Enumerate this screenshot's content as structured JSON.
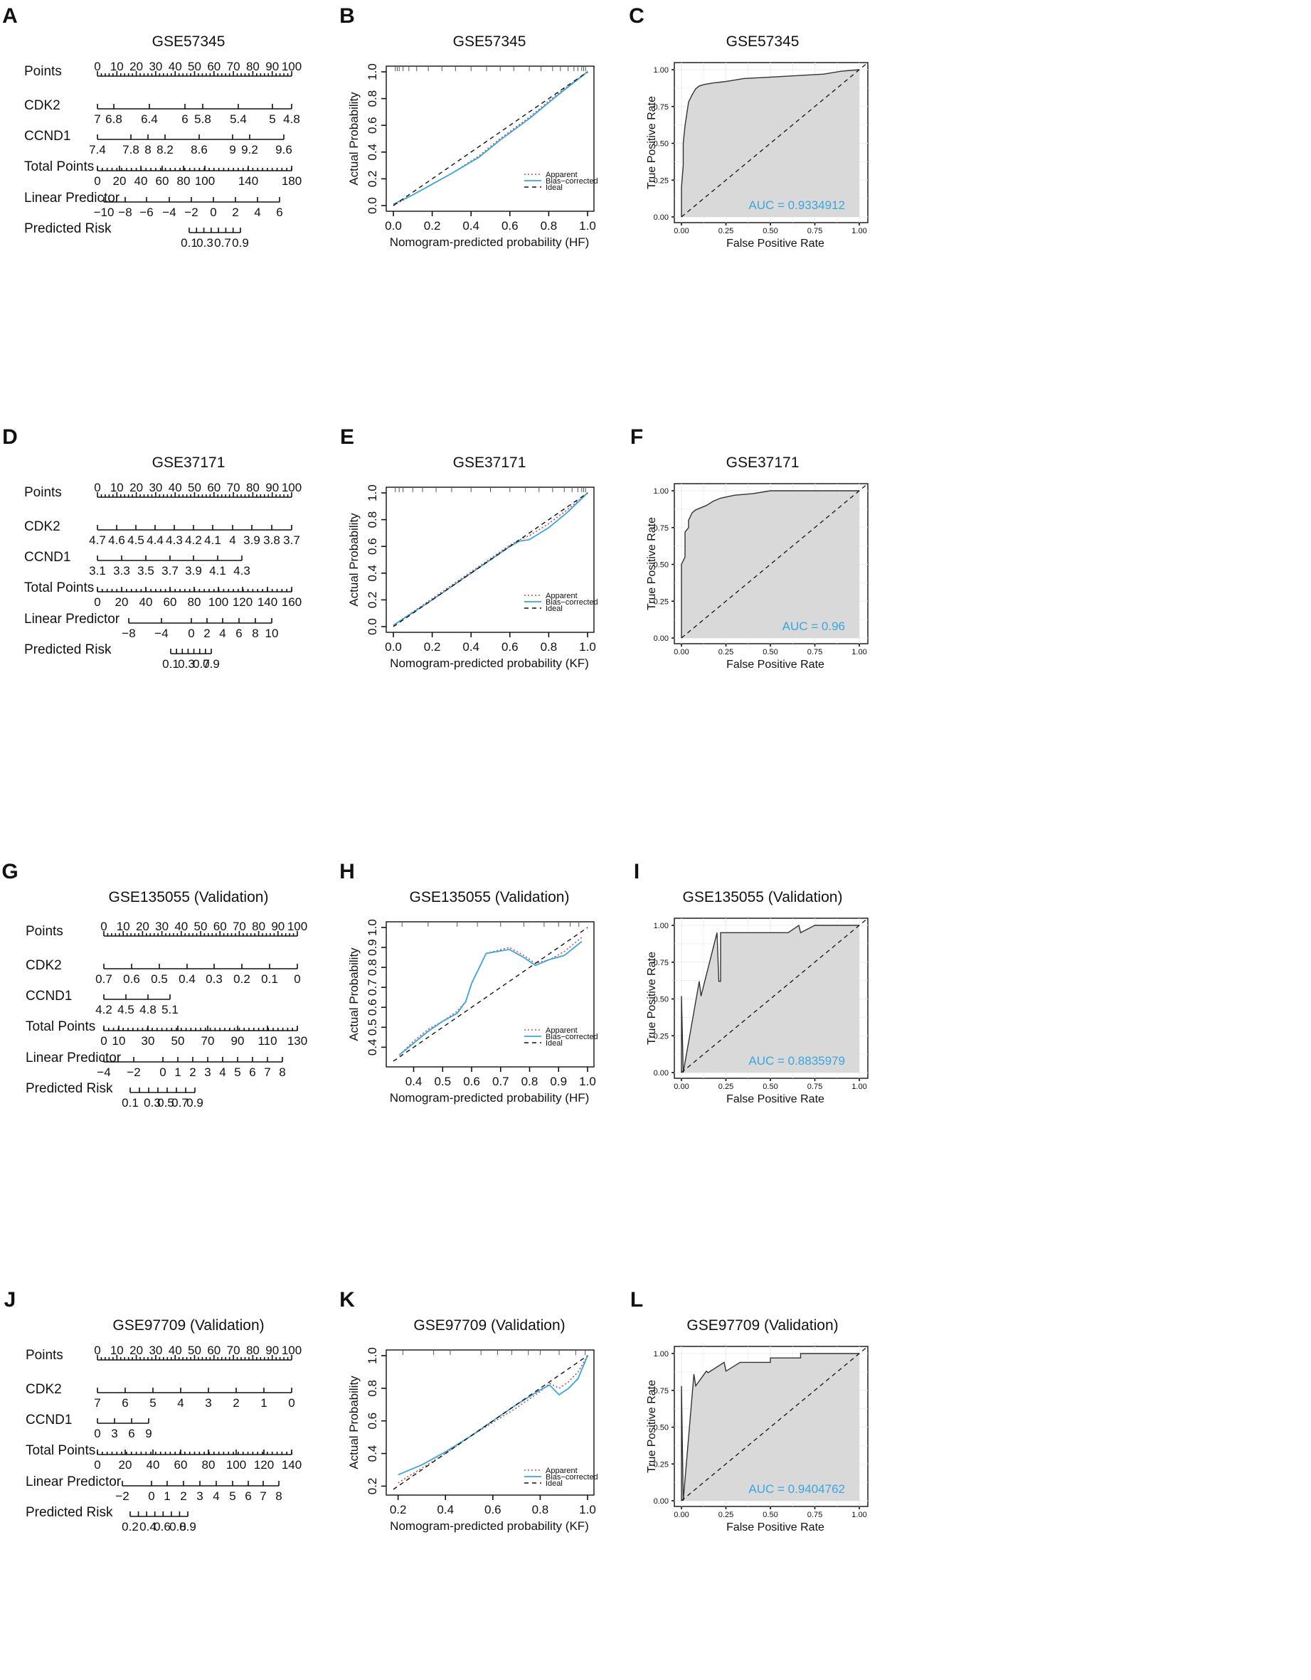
{
  "colors": {
    "curve_blue": "#3aa5e0",
    "ink": "#111111",
    "roc_fill": "#d9d9d9",
    "auc_text": "#3aa5e0",
    "grid": "#ececec"
  },
  "rows": [
    {
      "nomogram": {
        "letter": "A",
        "title": "GSE57345",
        "var_labels": [
          "Points",
          "CDK2",
          "CCND1",
          "Total Points",
          "Linear Predictor",
          "Predicted Risk"
        ],
        "points_ticks": [
          "0",
          "10",
          "20",
          "30",
          "40",
          "50",
          "60",
          "70",
          "80",
          "90",
          "100"
        ],
        "cdk2_ticks": [
          "7",
          "6.8",
          "6.4",
          "6",
          "5.8",
          "5.4",
          "5",
          "4.8"
        ],
        "ccnd1_ticks": [
          "7.4",
          "7.8",
          "8",
          "8.2",
          "8.6",
          "9",
          "9.2",
          "9.6"
        ],
        "total_ticks": [
          "0",
          "20",
          "40",
          "60",
          "80",
          "100",
          "140",
          "180"
        ],
        "lp_ticks": [
          "−10",
          "−8",
          "−6",
          "−4",
          "−2",
          "0",
          "2",
          "4",
          "6"
        ],
        "risk_ticks": [
          "0.1",
          "0.3",
          "0.7",
          "0.9"
        ]
      },
      "calibration": {
        "letter": "B",
        "title": "GSE57345",
        "xlabel": "Nomogram-predicted probability (HF)",
        "ylabel": "Actual Probability",
        "x_ticks": [
          "0.0",
          "0.2",
          "0.4",
          "0.6",
          "0.8",
          "1.0"
        ],
        "y_ticks": [
          "0.0",
          "0.2",
          "0.4",
          "0.6",
          "0.8",
          "1.0"
        ],
        "xlim": [
          0,
          1
        ],
        "ylim": [
          0,
          1
        ],
        "legend": [
          "Apparent",
          "Bias−corrected",
          "Ideal"
        ]
      },
      "roc": {
        "letter": "C",
        "title": "GSE57345",
        "xlabel": "False Positive Rate",
        "ylabel": "True Positive Rate",
        "ticks": [
          "0.00",
          "0.25",
          "0.50",
          "0.75",
          "1.00"
        ],
        "auc_label": "AUC = 0.9334912"
      }
    },
    {
      "nomogram": {
        "letter": "D",
        "title": "GSE37171",
        "var_labels": [
          "Points",
          "CDK2",
          "CCND1",
          "Total Points",
          "Linear Predictor",
          "Predicted Risk"
        ],
        "points_ticks": [
          "0",
          "10",
          "20",
          "30",
          "40",
          "50",
          "60",
          "70",
          "80",
          "90",
          "100"
        ],
        "cdk2_ticks": [
          "4.7",
          "4.6",
          "4.5",
          "4.4",
          "4.3",
          "4.2",
          "4.1",
          "4",
          "3.9",
          "3.8",
          "3.7"
        ],
        "ccnd1_ticks": [
          "3.1",
          "3.3",
          "3.5",
          "3.7",
          "3.9",
          "4.1",
          "4.3"
        ],
        "total_ticks": [
          "0",
          "20",
          "40",
          "60",
          "80",
          "100",
          "120",
          "140",
          "160"
        ],
        "lp_ticks": [
          "−8",
          "−4",
          "0",
          "2",
          "4",
          "6",
          "8",
          "10"
        ],
        "risk_ticks": [
          "0.1",
          "0.3",
          "0.7",
          "0.9"
        ]
      },
      "calibration": {
        "letter": "E",
        "title": "GSE37171",
        "xlabel": "Nomogram-predicted probability (KF)",
        "ylabel": "Actual Probability",
        "x_ticks": [
          "0.0",
          "0.2",
          "0.4",
          "0.6",
          "0.8",
          "1.0"
        ],
        "y_ticks": [
          "0.0",
          "0.2",
          "0.4",
          "0.6",
          "0.8",
          "1.0"
        ],
        "xlim": [
          0,
          1
        ],
        "ylim": [
          0,
          1
        ],
        "legend": [
          "Apparent",
          "Bias−corrected",
          "Ideal"
        ]
      },
      "roc": {
        "letter": "F",
        "title": "GSE37171",
        "xlabel": "False Positive Rate",
        "ylabel": "True Positive Rate",
        "ticks": [
          "0.00",
          "0.25",
          "0.50",
          "0.75",
          "1.00"
        ],
        "auc_label": "AUC = 0.96"
      }
    },
    {
      "nomogram": {
        "letter": "G",
        "title": "GSE135055 (Validation)",
        "var_labels": [
          "Points",
          "CDK2",
          "CCND1",
          "Total Points",
          "Linear Predictor",
          "Predicted Risk"
        ],
        "points_ticks": [
          "0",
          "10",
          "20",
          "30",
          "40",
          "50",
          "60",
          "70",
          "80",
          "90",
          "100"
        ],
        "cdk2_ticks": [
          "0.7",
          "0.6",
          "0.5",
          "0.4",
          "0.3",
          "0.2",
          "0.1",
          "0"
        ],
        "ccnd1_ticks": [
          "4.2",
          "4.5",
          "4.8",
          "5.1"
        ],
        "total_ticks": [
          "0",
          "10",
          "30",
          "50",
          "70",
          "90",
          "110",
          "130"
        ],
        "lp_ticks": [
          "−4",
          "−2",
          "0",
          "1",
          "2",
          "3",
          "4",
          "5",
          "6",
          "7",
          "8"
        ],
        "risk_ticks": [
          "0.1",
          "0.3",
          "0.5",
          "0.7",
          "0.9"
        ]
      },
      "calibration": {
        "letter": "H",
        "title": "GSE135055 (Validation)",
        "xlabel": "Nomogram-predicted probability (HF)",
        "ylabel": "Actual Probability",
        "x_ticks": [
          "0.4",
          "0.5",
          "0.6",
          "0.7",
          "0.8",
          "0.9",
          "1.0"
        ],
        "y_ticks": [
          "0.4",
          "0.5",
          "0.6",
          "0.7",
          "0.8",
          "0.9",
          "1.0"
        ],
        "xlim": [
          0.33,
          1.0
        ],
        "ylim": [
          0.33,
          1.0
        ],
        "legend": [
          "Apparent",
          "Bias−corrected",
          "Ideal"
        ]
      },
      "roc": {
        "letter": "I",
        "title": "GSE135055 (Validation)",
        "xlabel": "False Positive Rate",
        "ylabel": "True Positive Rate",
        "ticks": [
          "0.00",
          "0.25",
          "0.50",
          "0.75",
          "1.00"
        ],
        "auc_label": "AUC = 0.8835979"
      }
    },
    {
      "nomogram": {
        "letter": "J",
        "title": "GSE97709 (Validation)",
        "var_labels": [
          "Points",
          "CDK2",
          "CCND1",
          "Total Points",
          "Linear Predictor",
          "Predicted Risk"
        ],
        "points_ticks": [
          "0",
          "10",
          "20",
          "30",
          "40",
          "50",
          "60",
          "70",
          "80",
          "90",
          "100"
        ],
        "cdk2_ticks": [
          "7",
          "6",
          "5",
          "4",
          "3",
          "2",
          "1",
          "0"
        ],
        "ccnd1_ticks": [
          "0",
          "3",
          "6",
          "9"
        ],
        "total_ticks": [
          "0",
          "20",
          "40",
          "60",
          "80",
          "100",
          "120",
          "140"
        ],
        "lp_ticks": [
          "−2",
          "0",
          "1",
          "2",
          "3",
          "4",
          "5",
          "6",
          "7",
          "8"
        ],
        "risk_ticks": [
          "0.2",
          "0.4",
          "0.6",
          "0.8",
          "0.9"
        ]
      },
      "calibration": {
        "letter": "K",
        "title": "GSE97709 (Validation)",
        "xlabel": "Nomogram-predicted probability (KF)",
        "ylabel": "Actual Probability",
        "x_ticks": [
          "0.2",
          "0.4",
          "0.6",
          "0.8",
          "1.0"
        ],
        "y_ticks": [
          "0.2",
          "0.4",
          "0.6",
          "0.8",
          "1.0"
        ],
        "xlim": [
          0.18,
          1.0
        ],
        "ylim": [
          0.18,
          1.0
        ],
        "legend": [
          "Apparent",
          "Bias−corrected",
          "Ideal"
        ]
      },
      "roc": {
        "letter": "L",
        "title": "GSE97709 (Validation)",
        "xlabel": "False Positive Rate",
        "ylabel": "True Positive Rate",
        "ticks": [
          "0.00",
          "0.25",
          "0.50",
          "0.75",
          "1.00"
        ],
        "auc_label": "AUC = 0.9404762"
      }
    }
  ],
  "chart_data": [
    {
      "panel": "A",
      "type": "nomogram",
      "title": "GSE57345",
      "variables": [
        "Points",
        "CDK2",
        "CCND1",
        "Total Points",
        "Linear Predictor",
        "Predicted Risk"
      ]
    },
    {
      "panel": "B",
      "type": "line",
      "title": "GSE57345",
      "xlabel": "Nomogram-predicted probability (HF)",
      "ylabel": "Actual Probability",
      "xlim": [
        0,
        1
      ],
      "ylim": [
        0,
        1
      ],
      "series": [
        {
          "name": "Apparent",
          "style": "dotted",
          "x": [
            0,
            0.1,
            0.2,
            0.3,
            0.44,
            0.55,
            0.7,
            0.85,
            1.0
          ],
          "y": [
            0,
            0.08,
            0.16,
            0.24,
            0.37,
            0.5,
            0.66,
            0.84,
            1.0
          ]
        },
        {
          "name": "Bias-corrected",
          "style": "solid",
          "x": [
            0,
            0.1,
            0.2,
            0.3,
            0.44,
            0.55,
            0.7,
            0.85,
            1.0
          ],
          "y": [
            0.01,
            0.08,
            0.16,
            0.24,
            0.36,
            0.49,
            0.65,
            0.83,
            1.0
          ]
        },
        {
          "name": "Ideal",
          "style": "dashed",
          "x": [
            0,
            1
          ],
          "y": [
            0,
            1
          ]
        }
      ],
      "rug_x": [
        0.01,
        0.02,
        0.03,
        0.05,
        0.08,
        0.12,
        0.18,
        0.25,
        0.32,
        0.4,
        0.48,
        0.55,
        0.62,
        0.7,
        0.76,
        0.82,
        0.86,
        0.9,
        0.93,
        0.95,
        0.97,
        0.98,
        0.99
      ]
    },
    {
      "panel": "C",
      "type": "roc",
      "title": "GSE57345",
      "auc": 0.9334912,
      "fpr": [
        0,
        0,
        0.01,
        0.01,
        0.02,
        0.03,
        0.04,
        0.06,
        0.08,
        0.1,
        0.13,
        0.18,
        0.25,
        0.35,
        0.5,
        0.65,
        0.8,
        0.9,
        1.0
      ],
      "tpr": [
        0,
        0.2,
        0.35,
        0.5,
        0.62,
        0.7,
        0.78,
        0.83,
        0.87,
        0.89,
        0.9,
        0.91,
        0.92,
        0.94,
        0.95,
        0.96,
        0.97,
        0.99,
        1.0
      ]
    },
    {
      "panel": "D",
      "type": "nomogram",
      "title": "GSE37171",
      "variables": [
        "Points",
        "CDK2",
        "CCND1",
        "Total Points",
        "Linear Predictor",
        "Predicted Risk"
      ]
    },
    {
      "panel": "E",
      "type": "line",
      "title": "GSE37171",
      "xlabel": "Nomogram-predicted probability (KF)",
      "ylabel": "Actual Probability",
      "xlim": [
        0,
        1
      ],
      "ylim": [
        0,
        1
      ],
      "series": [
        {
          "name": "Apparent",
          "style": "dotted",
          "x": [
            0,
            0.2,
            0.4,
            0.6,
            0.65,
            0.7,
            0.8,
            0.9,
            1.0
          ],
          "y": [
            0.01,
            0.21,
            0.41,
            0.61,
            0.65,
            0.68,
            0.77,
            0.88,
            1.0
          ]
        },
        {
          "name": "Bias-corrected",
          "style": "solid",
          "x": [
            0,
            0.2,
            0.4,
            0.6,
            0.65,
            0.7,
            0.8,
            0.9,
            1.0
          ],
          "y": [
            0.01,
            0.2,
            0.4,
            0.6,
            0.64,
            0.65,
            0.74,
            0.86,
            1.0
          ]
        },
        {
          "name": "Ideal",
          "style": "dashed",
          "x": [
            0,
            1
          ],
          "y": [
            0,
            1
          ]
        }
      ],
      "rug_x": [
        0.01,
        0.03,
        0.05,
        0.1,
        0.15,
        0.22,
        0.3,
        0.4,
        0.5,
        0.6,
        0.68,
        0.75,
        0.82,
        0.88,
        0.92,
        0.95,
        0.97,
        0.98,
        0.99
      ]
    },
    {
      "panel": "F",
      "type": "roc",
      "title": "GSE37171",
      "auc": 0.96,
      "fpr": [
        0,
        0,
        0.02,
        0.02,
        0.04,
        0.04,
        0.06,
        0.08,
        0.1,
        0.14,
        0.18,
        0.22,
        0.3,
        0.4,
        0.5,
        1.0
      ],
      "tpr": [
        0,
        0.5,
        0.55,
        0.72,
        0.75,
        0.8,
        0.85,
        0.87,
        0.88,
        0.9,
        0.93,
        0.95,
        0.97,
        0.98,
        1.0,
        1.0
      ]
    },
    {
      "panel": "G",
      "type": "nomogram",
      "title": "GSE135055 (Validation)",
      "variables": [
        "Points",
        "CDK2",
        "CCND1",
        "Total Points",
        "Linear Predictor",
        "Predicted Risk"
      ]
    },
    {
      "panel": "H",
      "type": "line",
      "title": "GSE135055 (Validation)",
      "xlabel": "Nomogram-predicted probability (HF)",
      "ylabel": "Actual Probability",
      "xlim": [
        0.33,
        1.0
      ],
      "ylim": [
        0.33,
        1.0
      ],
      "series": [
        {
          "name": "Apparent",
          "style": "dotted",
          "x": [
            0.35,
            0.4,
            0.45,
            0.5,
            0.55,
            0.58,
            0.6,
            0.65,
            0.73,
            0.78,
            0.82,
            0.87,
            0.92,
            0.98
          ],
          "y": [
            0.36,
            0.43,
            0.49,
            0.53,
            0.58,
            0.63,
            0.72,
            0.87,
            0.9,
            0.86,
            0.82,
            0.84,
            0.88,
            0.95
          ]
        },
        {
          "name": "Bias-corrected",
          "style": "solid",
          "x": [
            0.35,
            0.4,
            0.45,
            0.5,
            0.55,
            0.58,
            0.6,
            0.65,
            0.73,
            0.78,
            0.82,
            0.87,
            0.92,
            0.98
          ],
          "y": [
            0.36,
            0.42,
            0.48,
            0.53,
            0.57,
            0.63,
            0.72,
            0.87,
            0.89,
            0.85,
            0.81,
            0.84,
            0.86,
            0.93
          ]
        },
        {
          "name": "Ideal",
          "style": "dashed",
          "x": [
            0.33,
            1.0
          ],
          "y": [
            0.33,
            1.0
          ]
        }
      ],
      "rug_x": [
        0.36,
        0.45,
        0.55,
        0.62,
        0.7,
        0.78,
        0.85,
        0.9,
        0.94,
        0.97
      ]
    },
    {
      "panel": "I",
      "type": "roc",
      "title": "GSE135055 (Validation)",
      "auc": 0.8835979,
      "fpr": [
        0,
        0,
        0.01,
        0.1,
        0.11,
        0.2,
        0.21,
        0.22,
        0.22,
        0.23,
        0.33,
        0.6,
        0.66,
        0.67,
        0.75,
        1.0
      ],
      "tpr": [
        0,
        0.52,
        0.0,
        0.62,
        0.52,
        0.95,
        0.62,
        0.62,
        0.95,
        0.95,
        0.95,
        0.95,
        1.0,
        0.95,
        1.0,
        1.0
      ]
    },
    {
      "panel": "J",
      "type": "nomogram",
      "title": "GSE97709 (Validation)",
      "variables": [
        "Points",
        "CDK2",
        "CCND1",
        "Total Points",
        "Linear Predictor",
        "Predicted Risk"
      ]
    },
    {
      "panel": "K",
      "type": "line",
      "title": "GSE97709 (Validation)",
      "xlabel": "Nomogram-predicted probability (KF)",
      "ylabel": "Actual Probability",
      "xlim": [
        0.18,
        1.0
      ],
      "ylim": [
        0.18,
        1.0
      ],
      "series": [
        {
          "name": "Apparent",
          "style": "dotted",
          "x": [
            0.2,
            0.3,
            0.4,
            0.5,
            0.6,
            0.7,
            0.8,
            0.84,
            0.88,
            0.92,
            0.96,
            1.0
          ],
          "y": [
            0.22,
            0.31,
            0.4,
            0.5,
            0.59,
            0.68,
            0.78,
            0.83,
            0.8,
            0.84,
            0.9,
            1.0
          ]
        },
        {
          "name": "Bias-corrected",
          "style": "solid",
          "x": [
            0.2,
            0.3,
            0.4,
            0.5,
            0.6,
            0.7,
            0.8,
            0.84,
            0.88,
            0.92,
            0.96,
            1.0
          ],
          "y": [
            0.27,
            0.33,
            0.41,
            0.5,
            0.6,
            0.7,
            0.79,
            0.82,
            0.76,
            0.8,
            0.86,
            1.0
          ]
        },
        {
          "name": "Ideal",
          "style": "dashed",
          "x": [
            0.18,
            1.0
          ],
          "y": [
            0.18,
            1.0
          ]
        }
      ],
      "rug_x": [
        0.22,
        0.35,
        0.42,
        0.55,
        0.62,
        0.68,
        0.75,
        0.8,
        0.88,
        0.95,
        0.99
      ]
    },
    {
      "panel": "L",
      "type": "roc",
      "title": "GSE97709 (Validation)",
      "auc": 0.9404762,
      "fpr": [
        0,
        0,
        0.01,
        0.07,
        0.08,
        0.14,
        0.15,
        0.24,
        0.25,
        0.33,
        0.5,
        0.5,
        0.67,
        0.67,
        1.0
      ],
      "tpr": [
        0,
        0.78,
        0.0,
        0.86,
        0.78,
        0.88,
        0.87,
        0.94,
        0.88,
        0.94,
        0.94,
        0.97,
        0.97,
        1.0,
        1.0
      ]
    }
  ]
}
